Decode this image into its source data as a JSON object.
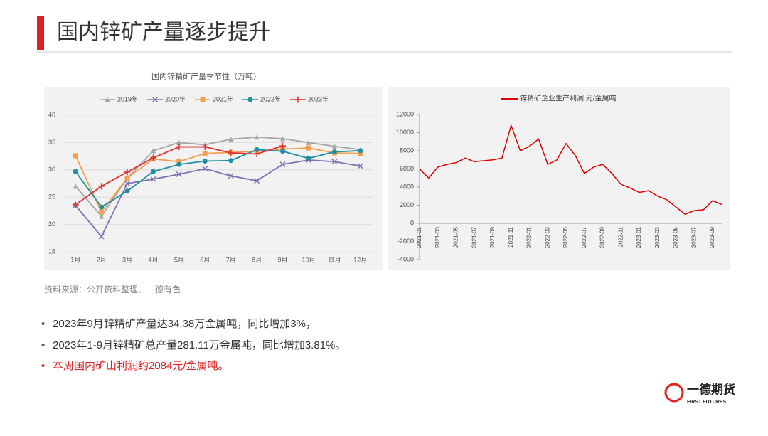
{
  "header": {
    "title": "国内锌矿产量逐步提升"
  },
  "chart_data": [
    {
      "type": "line",
      "title": "国内锌精矿产量季节性（万吨）",
      "categories": [
        "1月",
        "2月",
        "3月",
        "4月",
        "5月",
        "6月",
        "7月",
        "8月",
        "9月",
        "10月",
        "11月",
        "12月"
      ],
      "ylim": [
        15,
        40
      ],
      "yticks": [
        15,
        20,
        25,
        30,
        35,
        40
      ],
      "grid": true,
      "legend": "top",
      "series": [
        {
          "name": "2019年",
          "color": "#a5a5a5",
          "marker": "triangle",
          "values": [
            27,
            21.5,
            28.5,
            33.5,
            35,
            34.6,
            35.6,
            36,
            35.7,
            35,
            34.3,
            33.7
          ]
        },
        {
          "name": "2020年",
          "color": "#7f6fb0",
          "marker": "x",
          "values": [
            23.5,
            17.8,
            27.5,
            28.3,
            29.2,
            30.2,
            28.9,
            28,
            31,
            31.8,
            31.5,
            30.7
          ]
        },
        {
          "name": "2021年",
          "color": "#f0a050",
          "marker": "square",
          "values": [
            32.6,
            22.3,
            28.5,
            32,
            31.5,
            33,
            33.2,
            33.4,
            33.8,
            34,
            33.1,
            33
          ]
        },
        {
          "name": "2022年",
          "color": "#1f8fa0",
          "marker": "circle",
          "values": [
            29.7,
            23.2,
            26.1,
            29.7,
            31,
            31.6,
            31.7,
            33.7,
            33.4,
            32.1,
            33.3,
            33.5
          ]
        },
        {
          "name": "2023年",
          "color": "#e03030",
          "marker": "plus",
          "values": [
            23.6,
            27,
            29.6,
            32.2,
            34.2,
            34.2,
            33.1,
            32.9,
            34.38,
            null,
            null,
            null
          ]
        }
      ]
    },
    {
      "type": "line",
      "name": "锌精矿企业生产利润 元/金属吨",
      "color": "#e00000",
      "x": [
        "2021-01",
        "2021-02",
        "2021-03",
        "2021-04",
        "2021-05",
        "2021-06",
        "2021-07",
        "2021-08",
        "2021-09",
        "2021-10",
        "2021-11",
        "2021-12",
        "2022-01",
        "2022-02",
        "2022-03",
        "2022-04",
        "2022-05",
        "2022-06",
        "2022-07",
        "2022-08",
        "2022-09",
        "2022-10",
        "2022-11",
        "2022-12",
        "2023-01",
        "2023-02",
        "2023-03",
        "2023-04",
        "2023-05",
        "2023-06",
        "2023-07",
        "2023-08",
        "2023-09",
        "2023-10"
      ],
      "values": [
        6000,
        5000,
        6200,
        6500,
        6700,
        7200,
        6800,
        6900,
        7000,
        7200,
        10800,
        8000,
        8500,
        9300,
        6500,
        7000,
        8800,
        7500,
        5500,
        6200,
        6500,
        5500,
        4300,
        3900,
        3400,
        3600,
        3000,
        2600,
        1800,
        1000,
        1400,
        1500,
        2500,
        2084
      ],
      "xticks": [
        "2021-01",
        "2021-03",
        "2021-05",
        "2021-07",
        "2021-09",
        "2021-11",
        "2022-01",
        "2022-03",
        "2022-05",
        "2022-07",
        "2022-09",
        "2022-11",
        "2023-01",
        "2023-03",
        "2023-05",
        "2023-07",
        "2023-09"
      ],
      "ylim": [
        -4000,
        12000
      ],
      "yticks": [
        -4000,
        -2000,
        0,
        2000,
        4000,
        6000,
        8000,
        10000,
        12000
      ],
      "legend": "top"
    }
  ],
  "source": "资料来源：公开资料整理、一德有色",
  "bullets": [
    "2023年9月锌精矿产量达34.38万金属吨，同比增加3%，",
    "2023年1-9月锌精矿总产量281.11万金属吨，同比增加3.81%。",
    "本周国内矿山利润约2084元/金属吨。"
  ],
  "logo": {
    "name": "一德期货",
    "english": "FIRST FUTURES"
  }
}
